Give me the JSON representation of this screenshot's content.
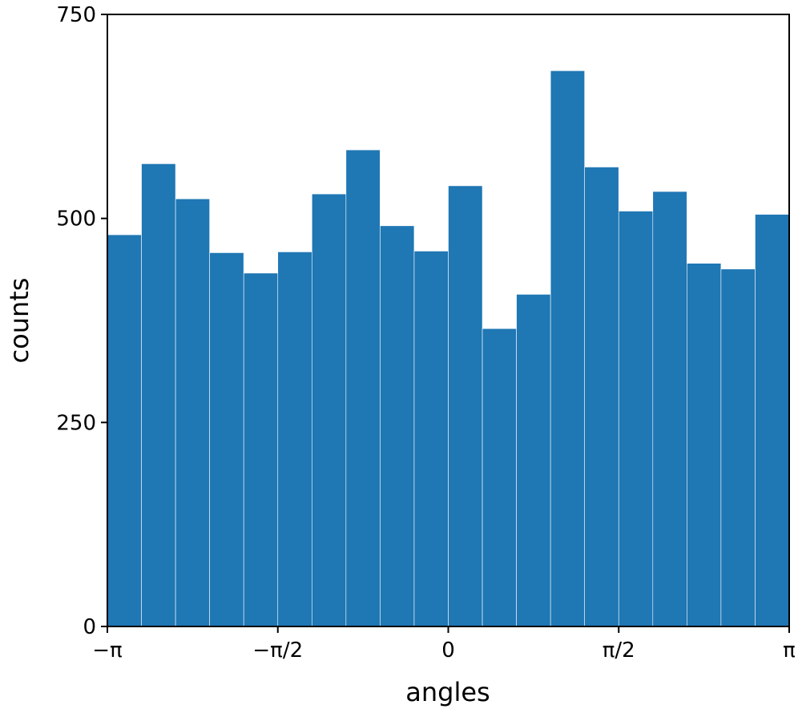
{
  "chart_data": {
    "type": "histogram",
    "x_label": "angles",
    "y_label": "counts",
    "bins": [
      -3.1416,
      -2.8274,
      -2.5133,
      -2.1991,
      -1.885,
      -1.5708,
      -1.2566,
      -0.9425,
      -0.6283,
      -0.3142,
      0,
      0.3142,
      0.6283,
      0.9425,
      1.2566,
      1.5708,
      1.885,
      2.1991,
      2.5133,
      2.8274,
      3.1416
    ],
    "values": [
      480,
      567,
      524,
      458,
      433,
      459,
      530,
      584,
      491,
      460,
      540,
      365,
      407,
      681,
      563,
      509,
      533,
      445,
      438,
      505
    ],
    "color": "#1f77b4",
    "xlim": [
      -3.1416,
      3.1416
    ],
    "xticks": [
      {
        "value": -3.1416,
        "label": "−π"
      },
      {
        "value": -1.5708,
        "label": "−π/2"
      },
      0,
      {
        "value": 1.5708,
        "label": "π/2"
      },
      {
        "value": 3.1416,
        "label": "π"
      }
    ],
    "ylim": [
      0,
      750
    ],
    "yticks": [
      0,
      250,
      500,
      750
    ],
    "grid": false
  }
}
